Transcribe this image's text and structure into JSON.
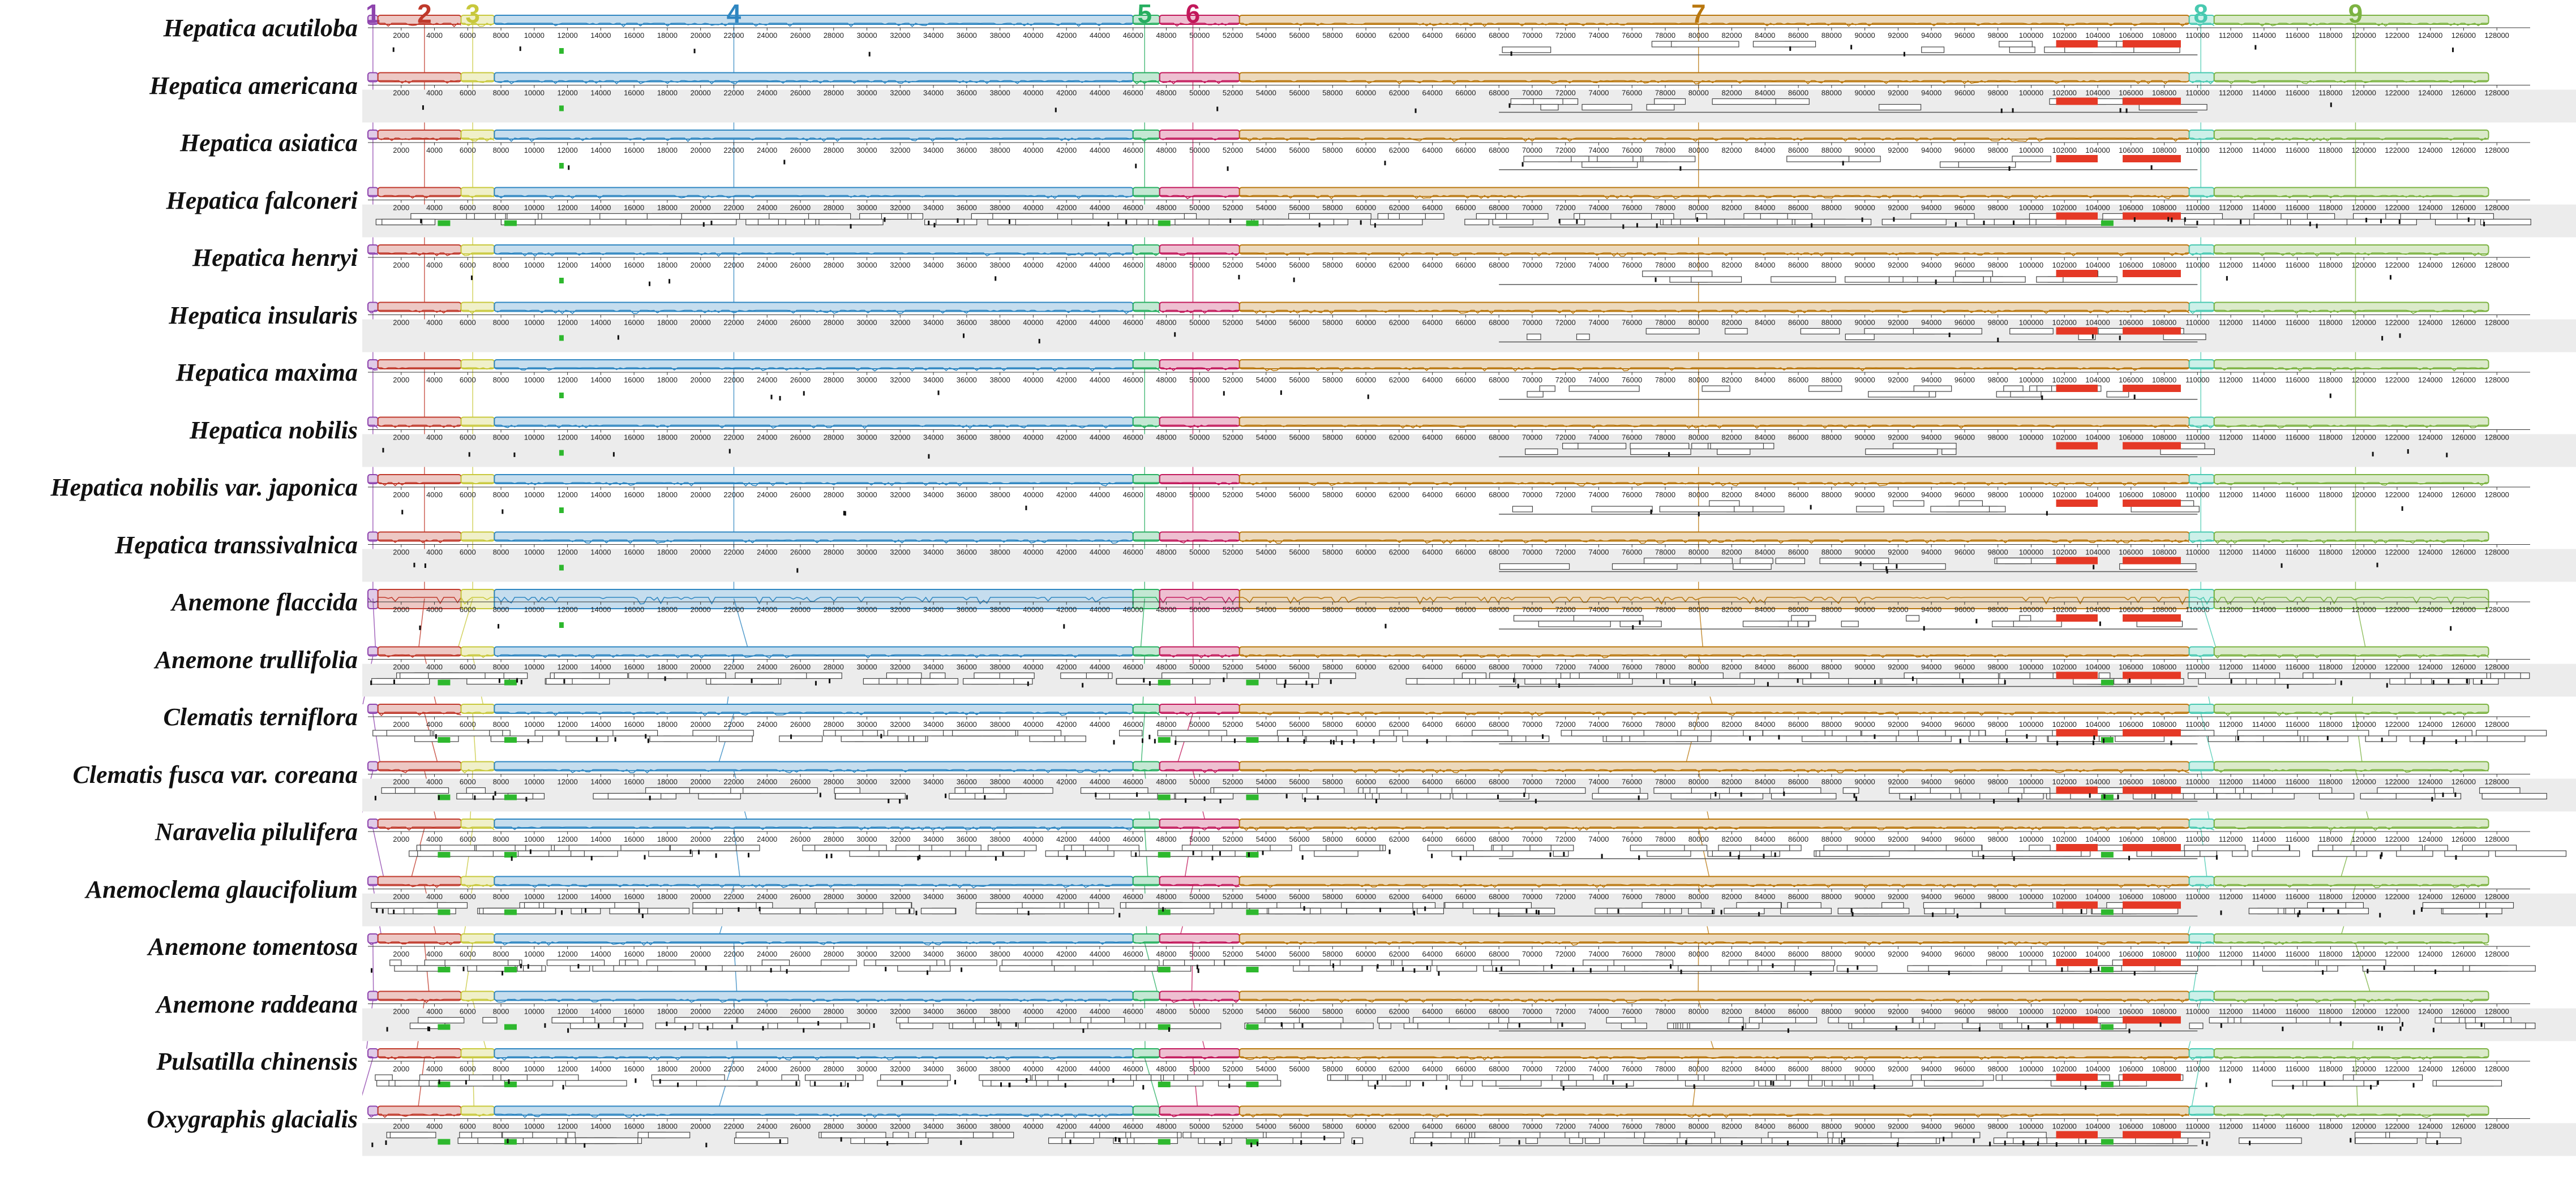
{
  "species": [
    {
      "name": "Hepatica acutiloba",
      "detail": "sparse"
    },
    {
      "name": "Hepatica americana",
      "detail": "sparse"
    },
    {
      "name": "Hepatica asiatica",
      "detail": "sparse"
    },
    {
      "name": "Hepatica falconeri",
      "detail": "dense"
    },
    {
      "name": "Hepatica henryi",
      "detail": "sparse"
    },
    {
      "name": "Hepatica insularis",
      "detail": "sparse"
    },
    {
      "name": "Hepatica maxima",
      "detail": "sparse"
    },
    {
      "name": "Hepatica nobilis",
      "detail": "sparse"
    },
    {
      "name": "Hepatica nobilis var. japonica",
      "detail": "sparse"
    },
    {
      "name": "Hepatica transsivalnica",
      "detail": "sparse"
    },
    {
      "name": "Anemone flaccida",
      "detail": "profile"
    },
    {
      "name": "Anemone trullifolia",
      "detail": "dense"
    },
    {
      "name": "Clematis terniflora",
      "detail": "dense"
    },
    {
      "name": "Clematis fusca var. coreana",
      "detail": "dense"
    },
    {
      "name": "Naravelia pilulifera",
      "detail": "dense"
    },
    {
      "name": "Anemoclema glaucifolium",
      "detail": "dense"
    },
    {
      "name": "Anemone tomentosa",
      "detail": "dense"
    },
    {
      "name": "Anemone raddeana",
      "detail": "dense"
    },
    {
      "name": "Pulsatilla chinensis",
      "detail": "dense"
    },
    {
      "name": "Oxygraphis glacialis",
      "detail": "dense"
    }
  ],
  "blocks": [
    {
      "label": "1",
      "color": "#8e44ad"
    },
    {
      "label": "2",
      "color": "#c0392b"
    },
    {
      "label": "3",
      "color": "#c8c83c"
    },
    {
      "label": "4",
      "color": "#2e86c1"
    },
    {
      "label": "5",
      "color": "#27ae60"
    },
    {
      "label": "6",
      "color": "#c2185b"
    },
    {
      "label": "7",
      "color": "#b9770e"
    },
    {
      "label": "8",
      "color": "#48c9b0"
    },
    {
      "label": "9",
      "color": "#7cb342"
    }
  ],
  "ticks": [
    "2000",
    "4000",
    "6000",
    "8000",
    "10000",
    "12000",
    "14000",
    "16000",
    "18000",
    "20000",
    "22000",
    "24000",
    "26000",
    "28000",
    "30000",
    "32000",
    "34000",
    "36000",
    "38000",
    "40000",
    "42000",
    "44000",
    "46000",
    "48000",
    "50000",
    "52000",
    "54000",
    "56000",
    "58000",
    "60000",
    "62000",
    "64000",
    "66000",
    "68000",
    "70000",
    "72000",
    "74000",
    "76000",
    "78000",
    "80000",
    "82000",
    "84000",
    "86000",
    "88000",
    "90000",
    "92000",
    "94000",
    "96000",
    "98000",
    "100000",
    "102000",
    "104000",
    "106000",
    "108000",
    "110000",
    "112000",
    "114000",
    "116000",
    "118000",
    "120000",
    "122000",
    "124000",
    "126000",
    "128000"
  ],
  "genome_max": 130000,
  "colors": {
    "gene_box": "#444444",
    "gene_fill": "#ffffff",
    "rRNA": "#e53926",
    "tRNA": "#2eb82e",
    "row_bg_alt": "#ececec"
  }
}
